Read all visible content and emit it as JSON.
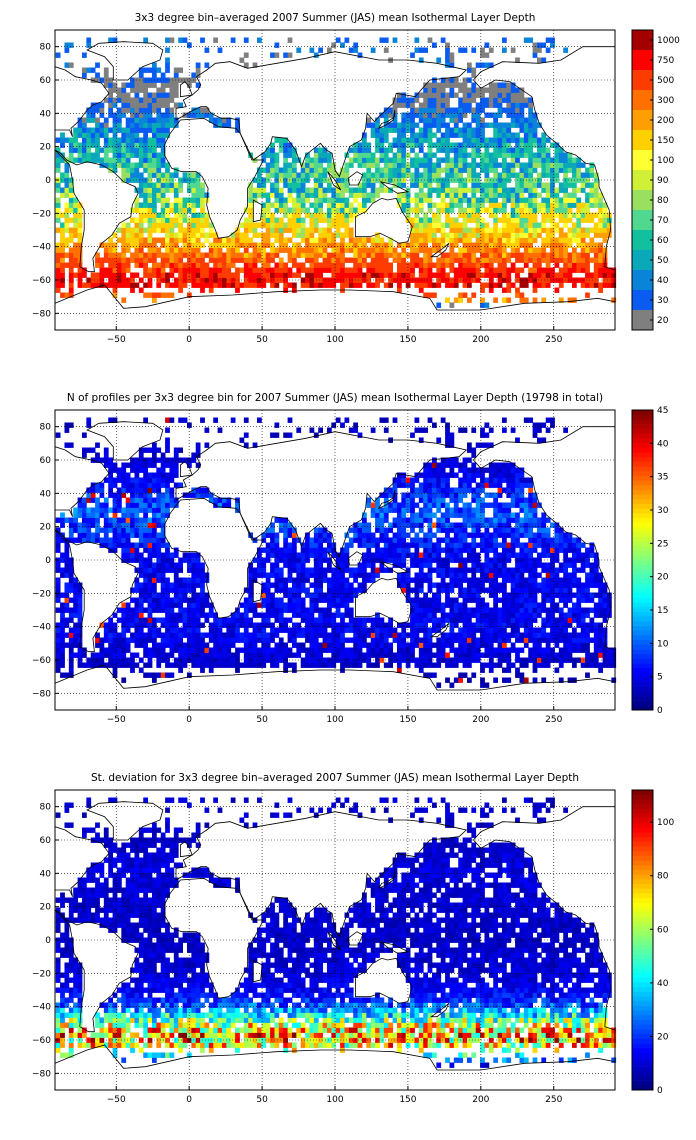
{
  "chart_data": [
    {
      "type": "heatmap",
      "title": "3x3 degree bin–averaged 2007 Summer (JAS) mean Isothermal Layer Depth",
      "xlabel": "",
      "ylabel": "",
      "xlim": [
        -92,
        292
      ],
      "ylim": [
        -90,
        90
      ],
      "x_ticks": [
        -50,
        0,
        50,
        100,
        150,
        200,
        250
      ],
      "x_tick_labels": [
        "−50",
        "0",
        "50",
        "100",
        "150",
        "200",
        "250"
      ],
      "y_ticks": [
        80,
        60,
        40,
        20,
        0,
        -20,
        -40,
        -60,
        -80
      ],
      "y_tick_labels": [
        "80",
        "60",
        "40",
        "20",
        "0",
        "−20",
        "−40",
        "−60",
        "−80"
      ],
      "grid": true,
      "colorbar": {
        "type": "discrete",
        "tick_labels": [
          "1000",
          "750",
          "500",
          "300",
          "200",
          "150",
          "100",
          "90",
          "80",
          "70",
          "60",
          "50",
          "40",
          "30",
          "20"
        ],
        "colors": [
          "#a50000",
          "#ff0000",
          "#ff3c00",
          "#ff7000",
          "#ff9e00",
          "#ffd000",
          "#ffff33",
          "#d0f038",
          "#9ae060",
          "#50d890",
          "#12c0a0",
          "#0aa8b8",
          "#0a84d8",
          "#0a5cf0",
          "#7f7f7f"
        ]
      },
      "zonal_profile": {
        "lat": [
          -75,
          -64,
          -58,
          -52,
          -46,
          -40,
          -34,
          -28,
          -22,
          -16,
          -10,
          -4,
          2,
          8,
          14,
          20,
          26,
          32,
          38,
          44,
          50,
          56,
          62,
          68,
          74
        ],
        "value": [
          30,
          600,
          600,
          420,
          260,
          190,
          140,
          110,
          90,
          75,
          65,
          60,
          55,
          55,
          50,
          45,
          40,
          35,
          28,
          22,
          18,
          15,
          20,
          25,
          25
        ]
      }
    },
    {
      "type": "heatmap",
      "title": "N of profiles per 3x3 degree bin for 2007 Summer (JAS) mean Isothermal Layer Depth  (19798 in total)",
      "xlabel": "",
      "ylabel": "",
      "total_profiles": 19798,
      "xlim": [
        -92,
        292
      ],
      "ylim": [
        -90,
        90
      ],
      "x_ticks": [
        -50,
        0,
        50,
        100,
        150,
        200,
        250
      ],
      "x_tick_labels": [
        "−50",
        "0",
        "50",
        "100",
        "150",
        "200",
        "250"
      ],
      "y_ticks": [
        80,
        60,
        40,
        20,
        0,
        -20,
        -40,
        -60,
        -80
      ],
      "y_tick_labels": [
        "80",
        "60",
        "40",
        "20",
        "0",
        "−20",
        "−40",
        "−60",
        "−80"
      ],
      "grid": true,
      "colorbar": {
        "type": "continuous",
        "range": [
          0,
          45
        ],
        "tick_values": [
          0,
          5,
          10,
          15,
          20,
          25,
          30,
          35,
          40,
          45
        ],
        "tick_labels": [
          "0",
          "5",
          "10",
          "15",
          "20",
          "25",
          "30",
          "35",
          "40",
          "45"
        ],
        "colormap": "jet"
      },
      "zonal_profile": {
        "lat": [
          -75,
          -64,
          -58,
          -52,
          -46,
          -40,
          -34,
          -28,
          -22,
          -16,
          -10,
          -4,
          2,
          8,
          14,
          20,
          26,
          32,
          38,
          44,
          50,
          56,
          62,
          68,
          74
        ],
        "value": [
          2,
          3,
          4,
          4,
          5,
          5,
          5,
          5,
          5,
          5,
          5,
          5,
          5,
          6,
          7,
          8,
          9,
          9,
          8,
          6,
          5,
          4,
          4,
          3,
          3
        ]
      }
    },
    {
      "type": "heatmap",
      "title": "St. deviation for 3x3 degree bin–averaged 2007 Summer (JAS) mean Isothermal Layer Depth",
      "xlabel": "",
      "ylabel": "",
      "xlim": [
        -92,
        292
      ],
      "ylim": [
        -90,
        90
      ],
      "x_ticks": [
        -50,
        0,
        50,
        100,
        150,
        200,
        250
      ],
      "x_tick_labels": [
        "−50",
        "0",
        "50",
        "100",
        "150",
        "200",
        "250"
      ],
      "y_ticks": [
        80,
        60,
        40,
        20,
        0,
        -20,
        -40,
        -60,
        -80
      ],
      "y_tick_labels": [
        "80",
        "60",
        "40",
        "20",
        "0",
        "−20",
        "−40",
        "−60",
        "−80"
      ],
      "grid": true,
      "colorbar": {
        "type": "continuous",
        "range": [
          0,
          112
        ],
        "tick_values": [
          0,
          20,
          40,
          60,
          80,
          100
        ],
        "tick_labels": [
          "0",
          "20",
          "40",
          "60",
          "80",
          "100"
        ],
        "colormap": "jet"
      },
      "zonal_profile": {
        "lat": [
          -75,
          -64,
          -58,
          -52,
          -46,
          -40,
          -34,
          -28,
          -22,
          -16,
          -10,
          -4,
          2,
          8,
          14,
          20,
          26,
          32,
          38,
          44,
          50,
          56,
          62,
          68,
          74
        ],
        "value": [
          10,
          70,
          80,
          70,
          45,
          25,
          15,
          12,
          10,
          9,
          9,
          8,
          8,
          8,
          8,
          9,
          9,
          9,
          10,
          10,
          9,
          8,
          8,
          8,
          8
        ]
      }
    }
  ]
}
